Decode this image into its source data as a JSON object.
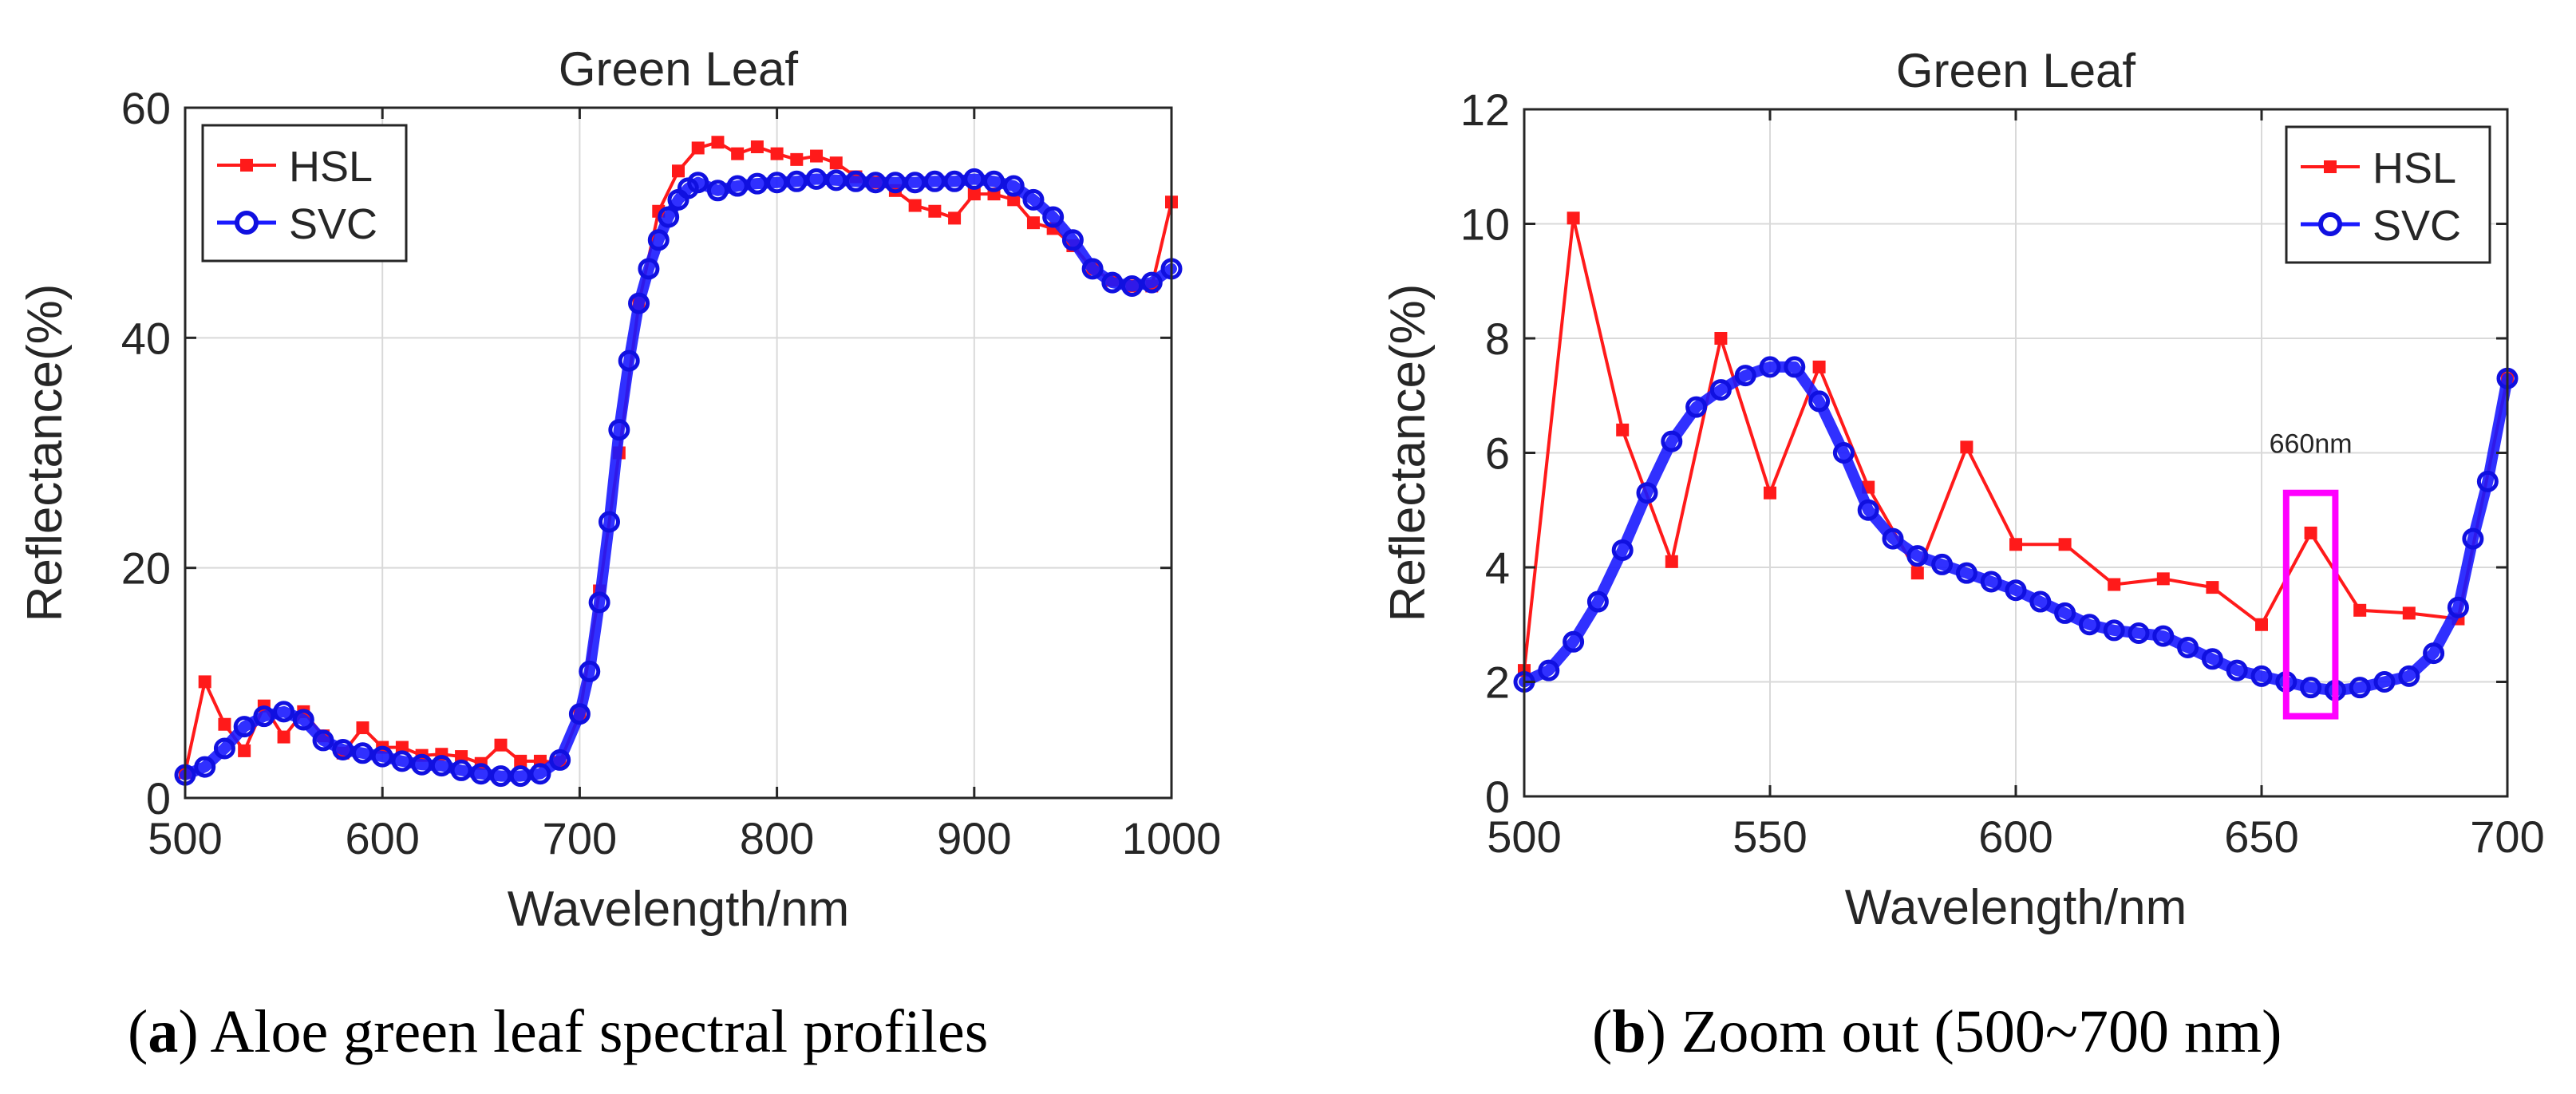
{
  "chart_data": [
    {
      "type": "line",
      "title": "Green Leaf",
      "xlabel": "Wavelength/nm",
      "ylabel": "Reflectance(%)",
      "xlim": [
        500,
        1000
      ],
      "ylim": [
        0,
        60
      ],
      "xticks": [
        500,
        600,
        700,
        800,
        900,
        1000
      ],
      "yticks": [
        0,
        20,
        40,
        60
      ],
      "grid": true,
      "legend": "top-left",
      "series": [
        {
          "name": "HSL",
          "color": "#ff1a1a",
          "marker": "square",
          "x": [
            500,
            510,
            520,
            530,
            540,
            550,
            560,
            570,
            580,
            590,
            600,
            610,
            620,
            630,
            640,
            650,
            660,
            670,
            680,
            690,
            700,
            710,
            720,
            730,
            740,
            750,
            760,
            770,
            780,
            790,
            800,
            810,
            820,
            830,
            840,
            850,
            860,
            870,
            880,
            890,
            900,
            910,
            920,
            930,
            940,
            950,
            960,
            970,
            980,
            990,
            1000
          ],
          "y": [
            2.2,
            10.1,
            6.4,
            4.1,
            8.0,
            5.3,
            7.5,
            5.4,
            3.9,
            6.1,
            4.4,
            4.4,
            3.7,
            3.8,
            3.6,
            3.0,
            4.6,
            3.2,
            3.2,
            3.1,
            7.3,
            18,
            30,
            43,
            51,
            54.5,
            56.5,
            57,
            56,
            56.6,
            56,
            55.5,
            55.8,
            55.2,
            54,
            53.5,
            52.8,
            51.5,
            51,
            50.4,
            52.5,
            52.5,
            52,
            50,
            49.5,
            48,
            46,
            45,
            44.5,
            44.5,
            51.8
          ]
        },
        {
          "name": "SVC",
          "color": "#1a1aff",
          "marker": "circle",
          "x": [
            500,
            510,
            520,
            530,
            540,
            550,
            560,
            570,
            580,
            590,
            600,
            610,
            620,
            630,
            640,
            650,
            660,
            670,
            680,
            690,
            700,
            705,
            710,
            715,
            720,
            725,
            730,
            735,
            740,
            745,
            750,
            755,
            760,
            770,
            780,
            790,
            800,
            810,
            820,
            830,
            840,
            850,
            860,
            870,
            880,
            890,
            900,
            910,
            920,
            930,
            940,
            950,
            960,
            970,
            980,
            990,
            1000
          ],
          "y": [
            2.0,
            2.7,
            4.3,
            6.2,
            7.1,
            7.5,
            6.8,
            5.0,
            4.2,
            3.9,
            3.6,
            3.2,
            2.9,
            2.8,
            2.4,
            2.1,
            1.9,
            1.9,
            2.1,
            3.3,
            7.3,
            11,
            17,
            24,
            32,
            38,
            43,
            46,
            48.5,
            50.5,
            52,
            53,
            53.5,
            52.8,
            53.2,
            53.4,
            53.5,
            53.6,
            53.8,
            53.7,
            53.6,
            53.5,
            53.5,
            53.5,
            53.6,
            53.6,
            53.8,
            53.6,
            53.2,
            52,
            50.5,
            48.5,
            46,
            44.8,
            44.5,
            44.8,
            46
          ]
        }
      ]
    },
    {
      "type": "line",
      "title": "Green Leaf",
      "xlabel": "Wavelength/nm",
      "ylabel": "Reflectance(%)",
      "xlim": [
        500,
        700
      ],
      "ylim": [
        0,
        12
      ],
      "xticks": [
        500,
        550,
        600,
        650,
        700
      ],
      "yticks": [
        0,
        2,
        4,
        6,
        8,
        10,
        12
      ],
      "grid": true,
      "legend": "top-right",
      "annotation": {
        "text": "660nm",
        "x": 660,
        "y": 6.0,
        "box_color": "#ff00ff",
        "box_x": [
          655,
          665
        ],
        "box_y": [
          1.4,
          5.3
        ]
      },
      "series": [
        {
          "name": "HSL",
          "color": "#ff1a1a",
          "marker": "square",
          "x": [
            500,
            510,
            520,
            530,
            540,
            550,
            560,
            570,
            580,
            590,
            600,
            610,
            620,
            630,
            640,
            650,
            660,
            670,
            680,
            690,
            700
          ],
          "y": [
            2.2,
            10.1,
            6.4,
            4.1,
            8.0,
            5.3,
            7.5,
            5.4,
            3.9,
            6.1,
            4.4,
            4.4,
            3.7,
            3.8,
            3.65,
            3.0,
            4.6,
            3.25,
            3.2,
            3.1,
            7.3
          ]
        },
        {
          "name": "SVC",
          "color": "#1a1aff",
          "marker": "circle",
          "x": [
            500,
            505,
            510,
            515,
            520,
            525,
            530,
            535,
            540,
            545,
            550,
            555,
            560,
            565,
            570,
            575,
            580,
            585,
            590,
            595,
            600,
            605,
            610,
            615,
            620,
            625,
            630,
            635,
            640,
            645,
            650,
            655,
            660,
            665,
            670,
            675,
            680,
            685,
            690,
            693,
            696,
            700
          ],
          "y": [
            2.0,
            2.2,
            2.7,
            3.4,
            4.3,
            5.3,
            6.2,
            6.8,
            7.1,
            7.35,
            7.5,
            7.5,
            6.9,
            6.0,
            5.0,
            4.5,
            4.2,
            4.05,
            3.9,
            3.75,
            3.6,
            3.4,
            3.2,
            3.0,
            2.9,
            2.85,
            2.8,
            2.6,
            2.4,
            2.2,
            2.1,
            2.0,
            1.9,
            1.85,
            1.9,
            2.0,
            2.1,
            2.5,
            3.3,
            4.5,
            5.5,
            7.3
          ]
        }
      ]
    }
  ],
  "captions": [
    {
      "label": "a",
      "text": "Aloe green leaf spectral profiles"
    },
    {
      "label": "b",
      "text": "Zoom out (500~700 nm)"
    }
  ]
}
